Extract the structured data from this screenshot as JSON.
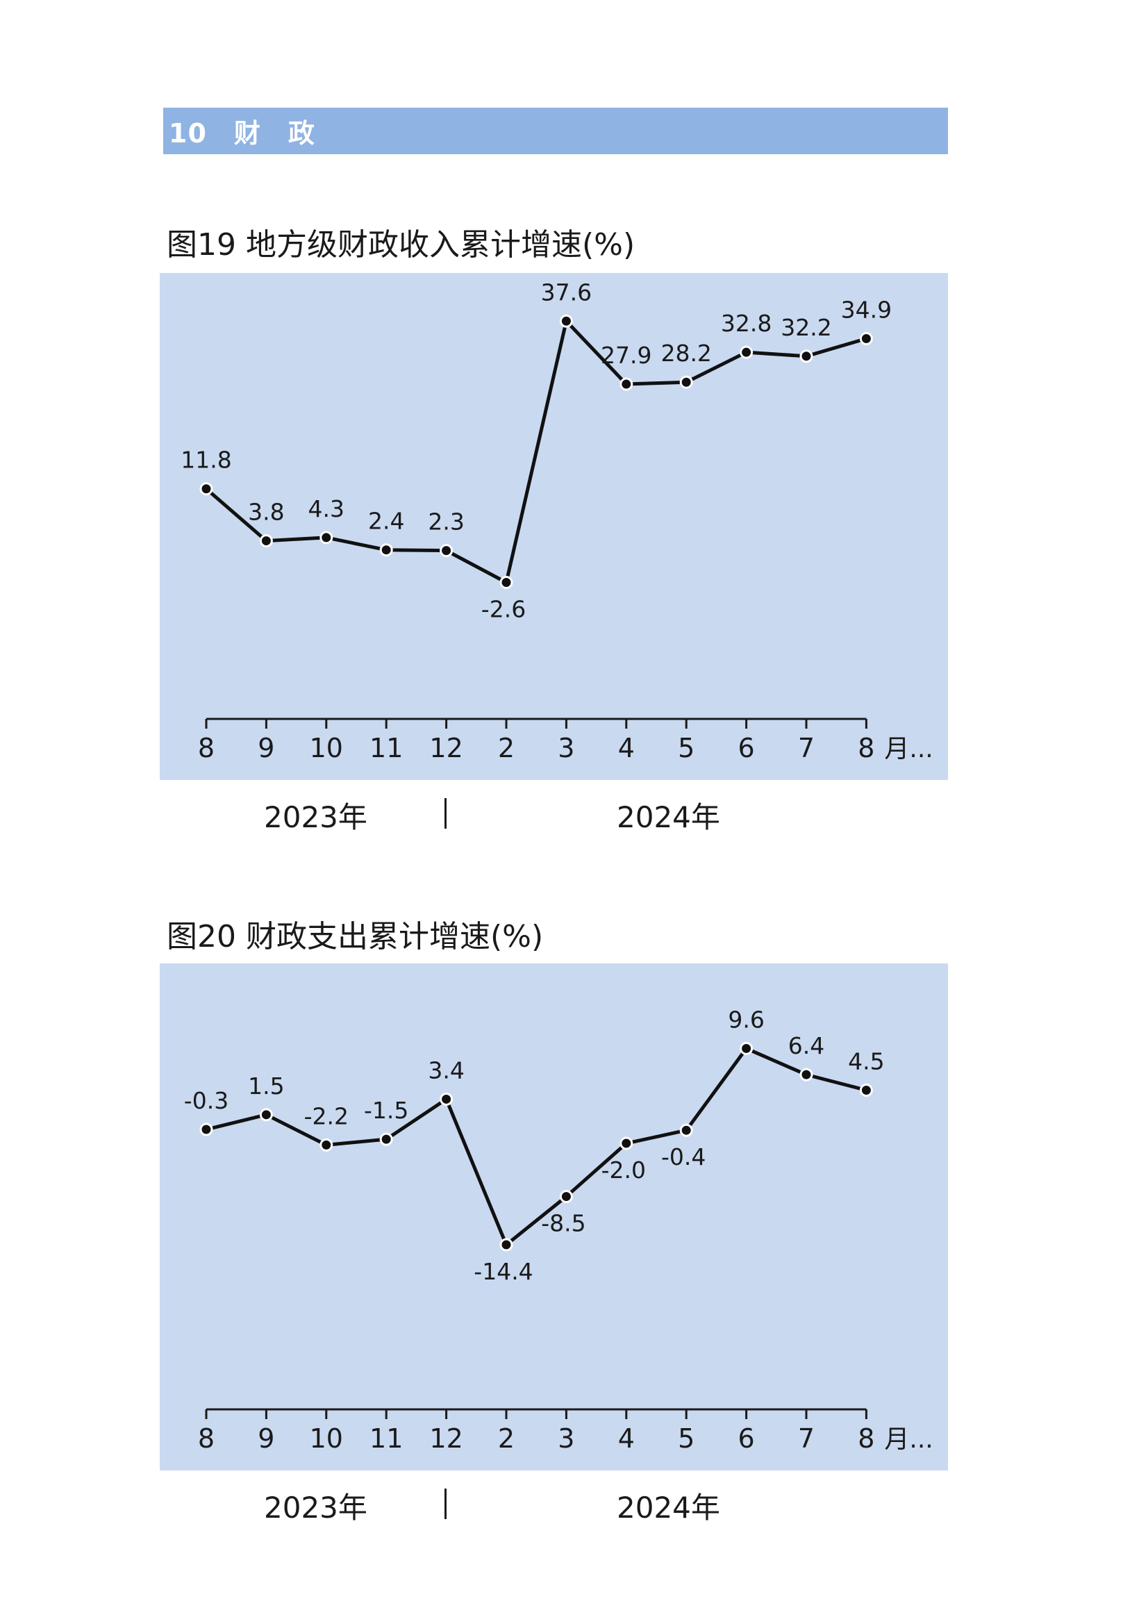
{
  "section": {
    "label": "10　财　政"
  },
  "charts": [
    {
      "title": "图19  地方级财政收入累计增速(%)",
      "years": {
        "left": "2023年",
        "right": "2024年"
      }
    },
    {
      "title": "图20  财政支出累计增速(%)",
      "years": {
        "left": "2023年",
        "right": "2024年"
      }
    }
  ],
  "chart_data": [
    {
      "type": "line",
      "title": "图19  地方级财政收入累计增速(%)",
      "categories": [
        "8",
        "9",
        "10",
        "11",
        "12",
        "2",
        "3",
        "4",
        "5",
        "6",
        "7",
        "8"
      ],
      "x_unit": "月...",
      "values": [
        11.8,
        3.8,
        4.3,
        2.4,
        2.3,
        -2.6,
        37.6,
        27.9,
        28.2,
        32.8,
        32.2,
        34.9
      ],
      "labels": [
        "11.8",
        "3.8",
        "4.3",
        "2.4",
        "2.3",
        "-2.6",
        "37.6",
        "27.9",
        "28.2",
        "32.8",
        "32.2",
        "34.9"
      ],
      "label_pos": [
        "above",
        "above",
        "above",
        "above",
        "above",
        "below",
        "above",
        "above",
        "above",
        "above",
        "above",
        "above"
      ],
      "yrange": [
        -33,
        45
      ],
      "grid": false,
      "colors": {
        "background": "#c9d9f0",
        "line": "#111111",
        "marker_fill": "#111111",
        "marker_stroke": "#ffffff"
      }
    },
    {
      "type": "line",
      "title": "图20  财政支出累计增速(%)",
      "categories": [
        "8",
        "9",
        "10",
        "11",
        "12",
        "2",
        "3",
        "4",
        "5",
        "6",
        "7",
        "8"
      ],
      "x_unit": "月...",
      "values": [
        -0.3,
        1.5,
        -2.2,
        -1.5,
        3.4,
        -14.4,
        -8.5,
        -2.0,
        -0.4,
        9.6,
        6.4,
        4.5
      ],
      "labels": [
        "-0.3",
        "1.5",
        "-2.2",
        "-1.5",
        "3.4",
        "-14.4",
        "-8.5",
        "-2.0",
        "-0.4",
        "9.6",
        "6.4",
        "4.5"
      ],
      "label_pos": [
        "above",
        "above",
        "above",
        "above",
        "above",
        "below",
        "below",
        "below",
        "below",
        "above",
        "above",
        "above"
      ],
      "yrange": [
        -42,
        20
      ],
      "grid": false,
      "colors": {
        "background": "#c9d9f0",
        "line": "#111111",
        "marker_fill": "#111111",
        "marker_stroke": "#ffffff"
      }
    }
  ]
}
